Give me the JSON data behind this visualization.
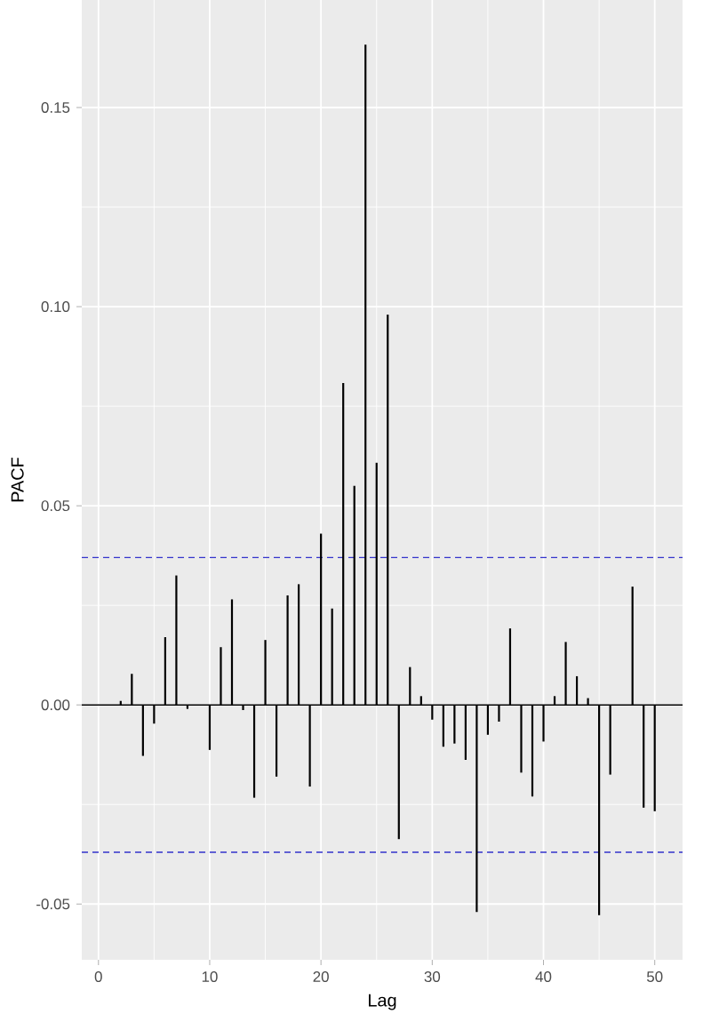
{
  "chart_data": {
    "type": "bar",
    "xlabel": "Lag",
    "ylabel": "PACF",
    "x": [
      1,
      2,
      3,
      4,
      5,
      6,
      7,
      8,
      9,
      10,
      11,
      12,
      13,
      14,
      15,
      16,
      17,
      18,
      19,
      20,
      21,
      22,
      23,
      24,
      25,
      26,
      27,
      28,
      29,
      30,
      31,
      32,
      33,
      34,
      35,
      36,
      37,
      38,
      39,
      40,
      41,
      42,
      43,
      44,
      45,
      46,
      47,
      48,
      49,
      50
    ],
    "values": [
      0.0,
      0.001,
      0.0078,
      -0.0128,
      -0.0047,
      0.017,
      0.0325,
      -0.001,
      null,
      -0.0113,
      0.0145,
      0.0265,
      -0.0013,
      -0.0233,
      0.0163,
      -0.018,
      0.0275,
      0.0303,
      -0.0205,
      0.043,
      0.0242,
      0.0808,
      0.055,
      0.1658,
      0.0608,
      0.098,
      -0.0337,
      0.0095,
      0.0022,
      -0.0037,
      -0.0105,
      -0.0097,
      -0.0138,
      -0.052,
      -0.0075,
      -0.0042,
      0.0192,
      -0.017,
      -0.023,
      -0.0092,
      0.0022,
      0.0158,
      0.0072,
      0.0017,
      -0.0528,
      -0.0175,
      0.0,
      0.0297,
      -0.0258,
      -0.0267
    ],
    "color": "#000000",
    "xlim": [
      -1.5,
      52.5
    ],
    "ylim": [
      -0.064,
      0.177
    ],
    "xticks": [
      0,
      10,
      20,
      30,
      40,
      50
    ],
    "yticks": [
      {
        "value": -0.05,
        "label": "-0.05"
      },
      {
        "value": 0,
        "label": "0.00"
      },
      {
        "value": 0.05,
        "label": "0.05"
      },
      {
        "value": 0.1,
        "label": "0.10"
      },
      {
        "value": 0.15,
        "label": "0.15"
      }
    ],
    "ref_lines": [
      {
        "axis": "y",
        "value": 0,
        "color": "#000000",
        "line_style": "solid"
      },
      {
        "axis": "y",
        "value": 0.037,
        "color": "#3333cc",
        "line_style": "dashed"
      },
      {
        "axis": "y",
        "value": -0.037,
        "color": "#3333cc",
        "line_style": "dashed"
      }
    ],
    "grid": true
  }
}
